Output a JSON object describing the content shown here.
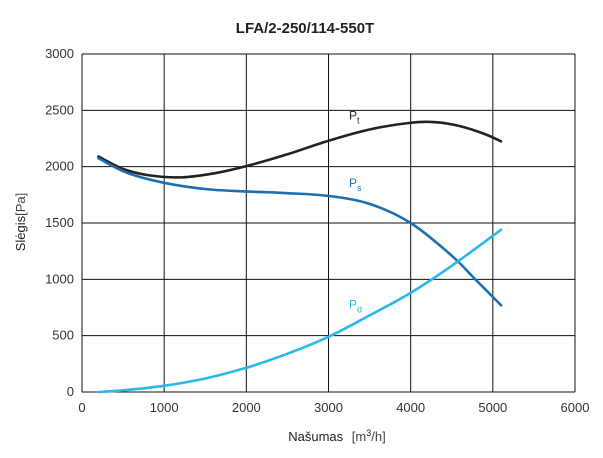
{
  "chart_data": {
    "type": "line",
    "title": "LFA/2-250/114-550T",
    "xlabel": "Našumas",
    "xlabel_unit_base": "[m",
    "xlabel_unit_sup": "3",
    "xlabel_unit_tail": "/h]",
    "ylabel": "Slėgis",
    "ylabel_unit": "[Pa]",
    "xlim": [
      0,
      6000
    ],
    "ylim": [
      0,
      3000
    ],
    "x_ticks": [
      0,
      1000,
      2000,
      3000,
      4000,
      5000,
      6000
    ],
    "y_ticks": [
      0,
      500,
      1000,
      1500,
      2000,
      2500,
      3000
    ],
    "grid": true,
    "series": [
      {
        "name": "Pt",
        "label_main": "P",
        "label_sub": "t",
        "color": "#222222",
        "label_pos": [
          3250,
          2420
        ],
        "points": [
          [
            200,
            2090
          ],
          [
            500,
            1980
          ],
          [
            800,
            1925
          ],
          [
            1200,
            1905
          ],
          [
            1600,
            1940
          ],
          [
            2000,
            2005
          ],
          [
            2500,
            2110
          ],
          [
            3000,
            2230
          ],
          [
            3500,
            2330
          ],
          [
            4000,
            2390
          ],
          [
            4300,
            2395
          ],
          [
            4600,
            2360
          ],
          [
            4900,
            2290
          ],
          [
            5100,
            2225
          ]
        ]
      },
      {
        "name": "Ps",
        "label_main": "P",
        "label_sub": "s",
        "color": "#1e6fb0",
        "label_pos": [
          3250,
          1820
        ],
        "points": [
          [
            200,
            2075
          ],
          [
            500,
            1960
          ],
          [
            800,
            1890
          ],
          [
            1200,
            1830
          ],
          [
            1600,
            1795
          ],
          [
            2000,
            1780
          ],
          [
            2500,
            1765
          ],
          [
            3000,
            1740
          ],
          [
            3500,
            1670
          ],
          [
            4000,
            1500
          ],
          [
            4500,
            1210
          ],
          [
            4800,
            990
          ],
          [
            5100,
            770
          ]
        ]
      },
      {
        "name": "Pd",
        "label_main": "P",
        "label_sub": "d",
        "color": "#29b9e6",
        "label_pos": [
          3250,
          740
        ],
        "points": [
          [
            200,
            0
          ],
          [
            500,
            15
          ],
          [
            1000,
            55
          ],
          [
            1500,
            120
          ],
          [
            2000,
            215
          ],
          [
            2500,
            340
          ],
          [
            3000,
            490
          ],
          [
            3500,
            680
          ],
          [
            4000,
            880
          ],
          [
            4500,
            1120
          ],
          [
            5100,
            1440
          ]
        ]
      }
    ]
  }
}
